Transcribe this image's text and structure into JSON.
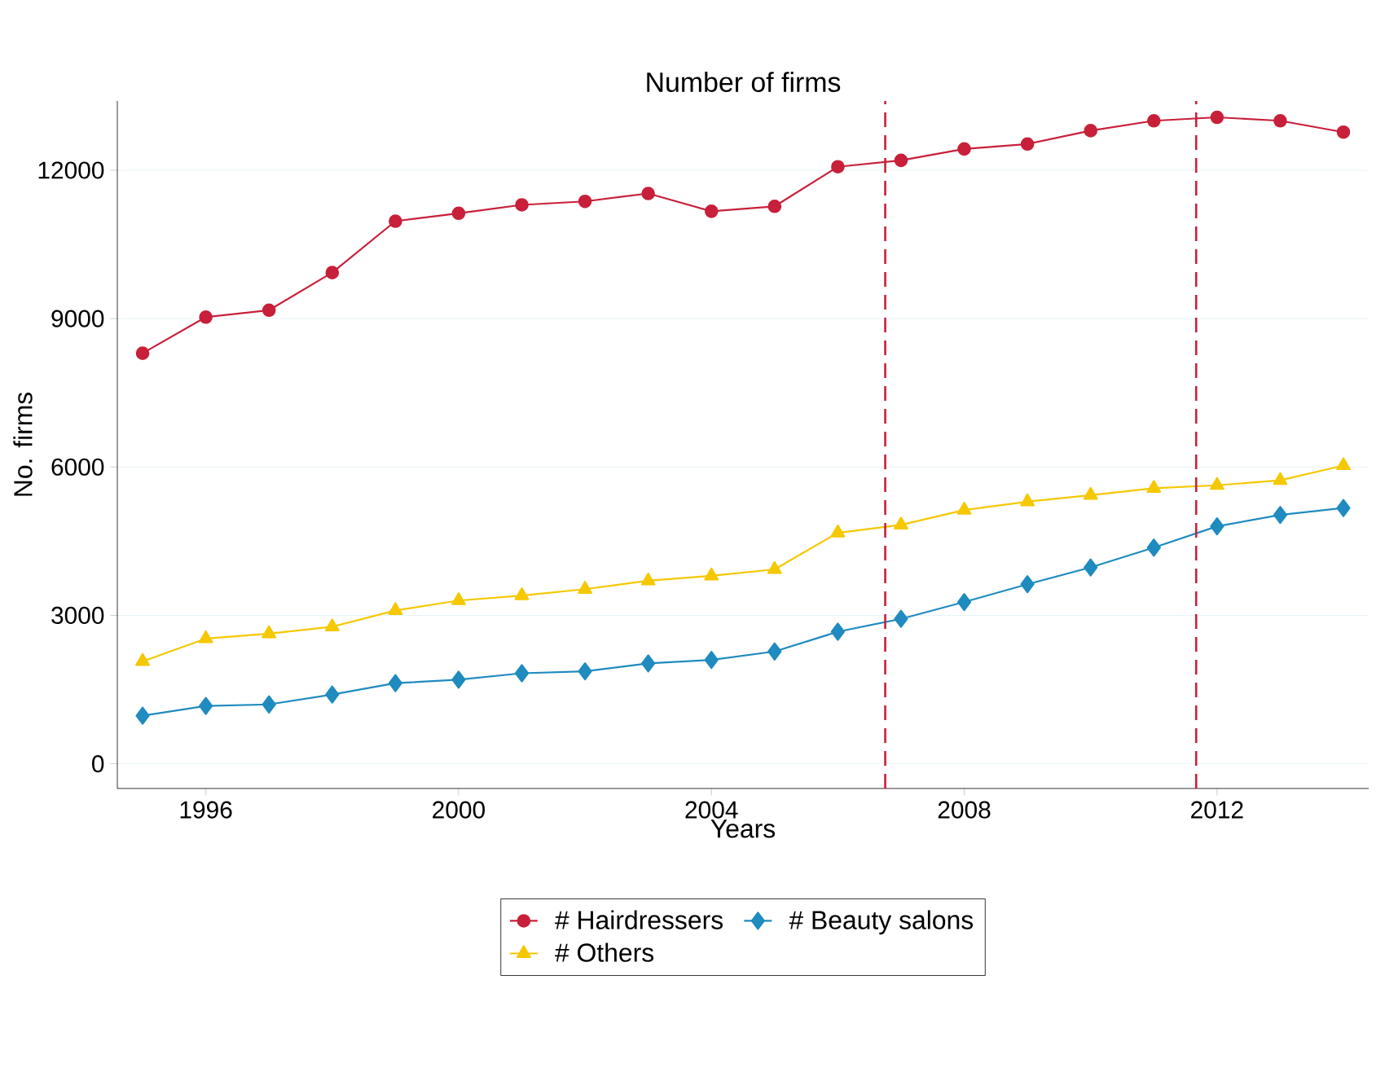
{
  "chart_data": {
    "type": "line",
    "title": "Number of firms",
    "xlabel": "Years",
    "ylabel": "No. firms",
    "x": [
      1995,
      1996,
      1997,
      1998,
      1999,
      2000,
      2001,
      2002,
      2003,
      2004,
      2005,
      2006,
      2007,
      2008,
      2009,
      2010,
      2011,
      2012,
      2013,
      2014
    ],
    "series": [
      {
        "name": "# Hairdressers",
        "color": "#c8203a",
        "marker": "circle",
        "values": [
          8300,
          9030,
          9170,
          9930,
          10970,
          11130,
          11300,
          11370,
          11530,
          11170,
          11270,
          12070,
          12200,
          12430,
          12530,
          12800,
          13000,
          13070,
          13000,
          12770
        ]
      },
      {
        "name": "# Beauty salons",
        "color": "#1f8bbf",
        "marker": "diamond",
        "values": [
          970,
          1170,
          1200,
          1400,
          1630,
          1700,
          1830,
          1870,
          2030,
          2100,
          2270,
          2670,
          2930,
          3270,
          3630,
          3970,
          4370,
          4800,
          5030,
          5170
        ]
      },
      {
        "name": "# Others",
        "color": "#f5c800",
        "marker": "triangle",
        "values": [
          2070,
          2530,
          2630,
          2770,
          3100,
          3300,
          3400,
          3530,
          3700,
          3800,
          3930,
          4670,
          4830,
          5130,
          5300,
          5430,
          5570,
          5630,
          5730,
          6030
        ]
      }
    ],
    "xlim": [
      1994.6,
      2014.4
    ],
    "ylim": [
      -500,
      13400
    ],
    "xticks": [
      1996,
      2000,
      2004,
      2008,
      2012
    ],
    "yticks": [
      0,
      3000,
      6000,
      9000,
      12000
    ],
    "ref_lines": [
      {
        "axis": "x",
        "value": 2006.75,
        "color": "#c8203a",
        "line_style": "dashed"
      },
      {
        "axis": "x",
        "value": 2011.67,
        "color": "#c8203a",
        "line_style": "dashed"
      }
    ],
    "grid": "y",
    "legend": "bottom",
    "line_style": "solid"
  }
}
